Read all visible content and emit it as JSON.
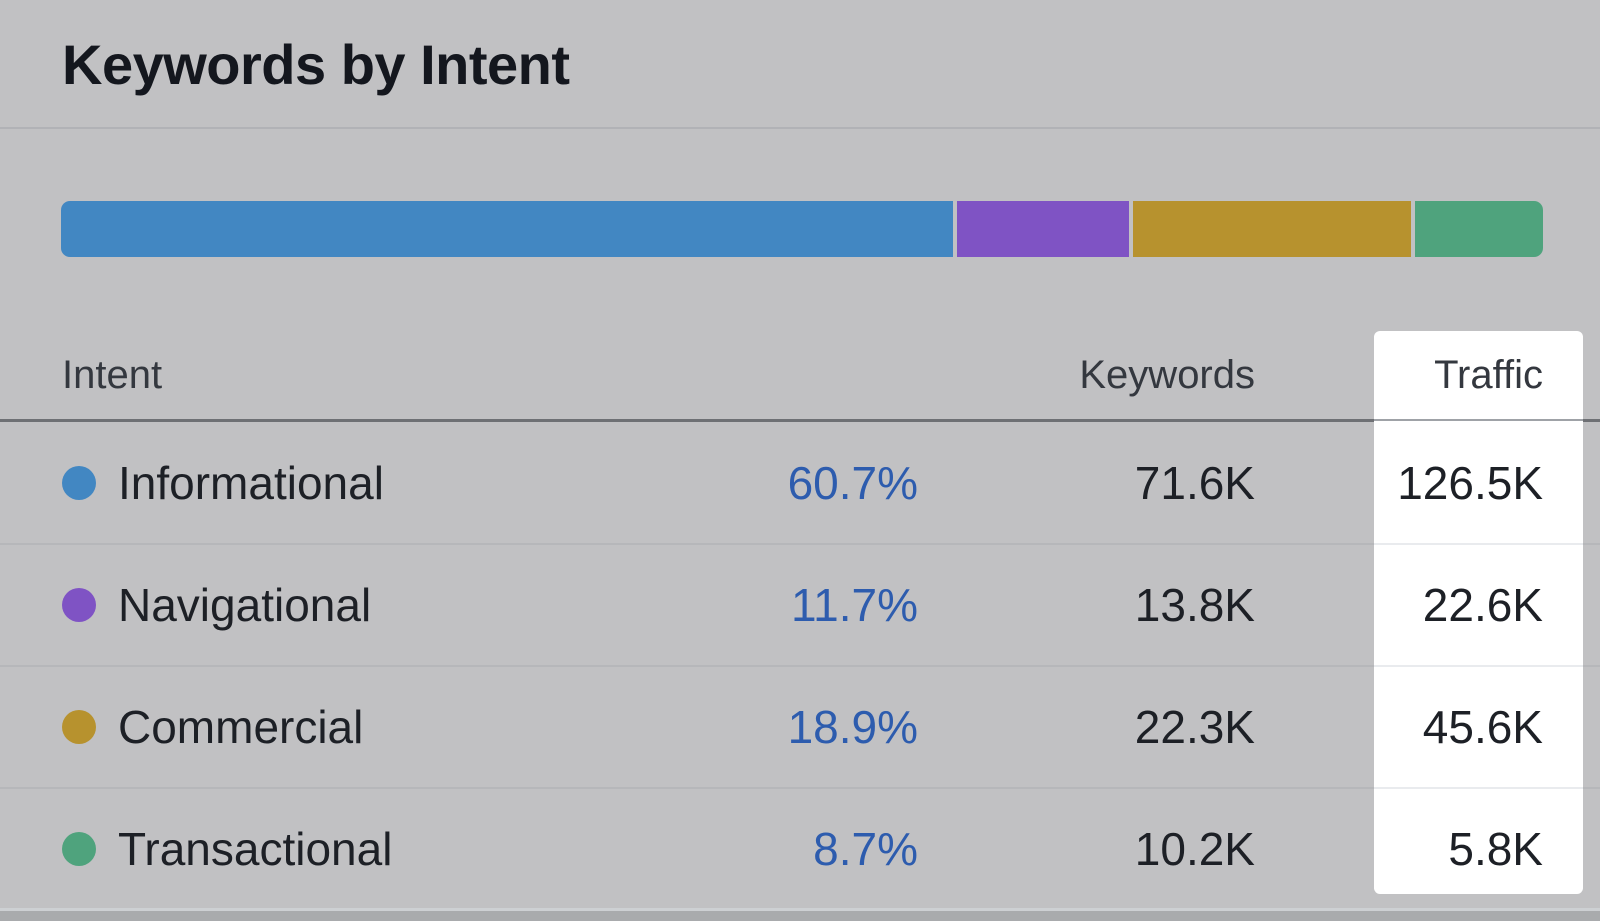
{
  "title": "Keywords by Intent",
  "chart_data": {
    "type": "bar",
    "subtype": "stacked-horizontal-single-track",
    "title": "Keywords by Intent",
    "categories": [
      "Informational",
      "Navigational",
      "Commercial",
      "Transactional"
    ],
    "series": [
      {
        "name": "Informational",
        "percent": 60.7,
        "keywords": "71.6K",
        "traffic": "126.5K",
        "color": "#4287c2"
      },
      {
        "name": "Navigational",
        "percent": 11.7,
        "keywords": "13.8K",
        "traffic": "22.6K",
        "color": "#7f53c4"
      },
      {
        "name": "Commercial",
        "percent": 18.9,
        "keywords": "22.3K",
        "traffic": "45.6K",
        "color": "#b7922e"
      },
      {
        "name": "Transactional",
        "percent": 8.7,
        "keywords": "10.2K",
        "traffic": "5.8K",
        "color": "#4fa37d"
      }
    ],
    "values_percent": [
      60.7,
      11.7,
      18.9,
      8.7
    ],
    "xlim": [
      0,
      100
    ],
    "grid": false,
    "legend_position": "table-below-bar"
  },
  "table": {
    "headers": {
      "intent": "Intent",
      "keywords": "Keywords",
      "traffic": "Traffic"
    },
    "rows": [
      {
        "intent": "Informational",
        "percent": "60.7%",
        "keywords": "71.6K",
        "traffic": "126.5K",
        "color": "#4287c2"
      },
      {
        "intent": "Navigational",
        "percent": "11.7%",
        "keywords": "13.8K",
        "traffic": "22.6K",
        "color": "#7f53c4"
      },
      {
        "intent": "Commercial",
        "percent": "18.9%",
        "keywords": "22.3K",
        "traffic": "45.6K",
        "color": "#b7922e"
      },
      {
        "intent": "Transactional",
        "percent": "8.7%",
        "keywords": "10.2K",
        "traffic": "5.8K",
        "color": "#4fa37d"
      }
    ]
  },
  "highlight": {
    "column": "Traffic",
    "background": "#ffffff"
  },
  "colors": {
    "background": "#c1c1c3",
    "title_text": "#14171e",
    "header_text": "#34383f",
    "row_text": "#1d2026",
    "percent_link": "#2d5cae",
    "header_divider": "#6e7074",
    "row_divider": "#b6b7ba",
    "bottom_strip": "#a9abad"
  }
}
